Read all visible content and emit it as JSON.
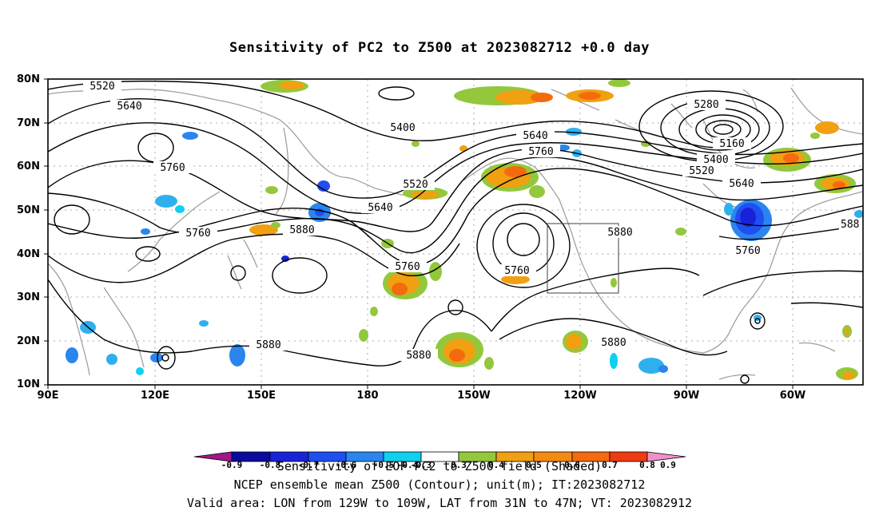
{
  "title": "Sensitivity of PC2 to Z500 at 2023082712 +0.0 day",
  "axes": {
    "lat_labels": [
      "80N",
      "70N",
      "60N",
      "50N",
      "40N",
      "30N",
      "20N",
      "10N"
    ],
    "lon_labels": [
      "90E",
      "120E",
      "150E",
      "180",
      "150W",
      "120W",
      "90W",
      "60W"
    ]
  },
  "contour_labels": {
    "l5520a": "5520",
    "l5640a": "5640",
    "l5400a": "5400",
    "l5760a": "5760",
    "l5640b": "5640",
    "l5760b": "5760",
    "l5280": "5280",
    "l5160": "5160",
    "l5400b": "5400",
    "l5520b": "5520",
    "l5520c": "5520",
    "l5640c": "5640",
    "l5640d": "5640",
    "l5760c": "5760",
    "l5760d": "5760",
    "l5880a": "5880",
    "l5760e": "5760",
    "l5880b": "5880",
    "l5760f": "5760",
    "l5880c": "5880",
    "l5880d": "5880",
    "l5880e": "5880",
    "l588f": "588"
  },
  "colorbar": {
    "colors": [
      "#a0168a",
      "#0a0a9c",
      "#1a22d8",
      "#1f4ff0",
      "#2a86ee",
      "#2fb0ee",
      "#0fd0f0",
      "#ffffff",
      "#94c83c",
      "#f0a010",
      "#f58a12",
      "#f46a0e",
      "#ef3a12",
      "#ef1010",
      "#f090c8"
    ],
    "tick_labels": [
      "-0.9",
      "-0.8",
      "-0.7",
      "-0.6",
      "-0.5",
      "-0.4",
      "-0.3",
      "0.3",
      "0.4",
      "0.5",
      "0.6",
      "0.7",
      "0.8",
      "0.9"
    ]
  },
  "captions": {
    "line1": "Sensitivity of EOF PC2 to Z500 field (Shaded)",
    "line2": "NCEP ensemble mean Z500 (Contour); unit(m); IT:2023082712",
    "line3": "Valid area: LON from 129W to 109W, LAT from 31N to 47N; VT: 2023082912"
  }
}
